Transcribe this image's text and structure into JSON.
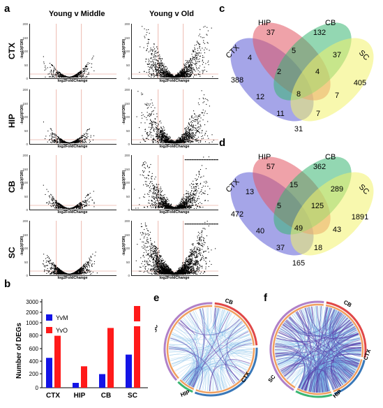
{
  "panel_labels": {
    "a": "a",
    "b": "b",
    "c": "c",
    "d": "d",
    "e": "e",
    "f": "f"
  },
  "panel_a": {
    "column_titles": [
      "Young v Middle",
      "Young v Old"
    ],
    "row_labels": [
      "CTX",
      "HIP",
      "CB",
      "SC"
    ],
    "xlabel": "log2FoldChange",
    "ylabel": "-log10(FDR)",
    "rows": [
      {
        "yticks": [
          "200",
          "150",
          "100",
          "50",
          "0"
        ]
      },
      {
        "yticks": [
          "200",
          "150",
          "100",
          "50",
          "0"
        ]
      },
      {
        "yticks": [
          "200",
          "150",
          "100",
          "50",
          "0"
        ]
      },
      {
        "yticks": [
          "200",
          "150",
          "100",
          "50",
          "0"
        ]
      }
    ]
  },
  "chart_data": {
    "type": "bar",
    "categories": [
      "CTX",
      "HIP",
      "CB",
      "SC"
    ],
    "series": [
      {
        "name": "YvM",
        "values": [
          460,
          75,
          210,
          510
        ],
        "color": "#1414e6"
      },
      {
        "name": "YvO",
        "values": [
          800,
          330,
          920,
          2600
        ],
        "color": "#ff1a1a"
      }
    ],
    "ylabel": "Number of DEGs",
    "yticks": [
      "0",
      "200",
      "400",
      "600",
      "800",
      "1000",
      "2000",
      "3000"
    ],
    "axis_break": true
  },
  "venn_c": {
    "labels": [
      "CTX",
      "HIP",
      "CB",
      "SC"
    ],
    "values": [
      "37",
      "132",
      "4",
      "5",
      "37",
      "388",
      "2",
      "4",
      "405",
      "12",
      "8",
      "7",
      "11",
      "7",
      "31"
    ]
  },
  "venn_d": {
    "labels": [
      "CTX",
      "HIP",
      "CB",
      "SC"
    ],
    "values": [
      "57",
      "362",
      "13",
      "15",
      "289",
      "472",
      "5",
      "125",
      "1891",
      "40",
      "49",
      "43",
      "37",
      "18",
      "165"
    ]
  },
  "circos_e": {
    "labels": [
      "CB",
      "SC",
      "CTX",
      "HIP"
    ]
  },
  "circos_f": {
    "labels": [
      "CB",
      "CTX",
      "HIP",
      "SC"
    ]
  },
  "colors": {
    "ctx": "#5b5bd6",
    "hip": "#e25563",
    "cb": "#3ab673",
    "sc": "#f2f26b",
    "chord": "#6fb6e6",
    "chord_dark": "#5a3aa8"
  }
}
